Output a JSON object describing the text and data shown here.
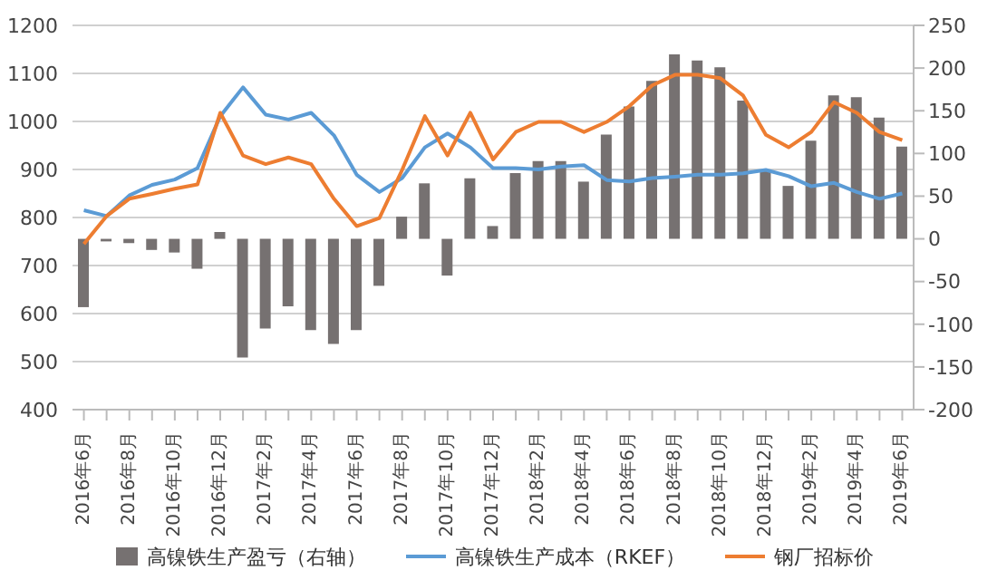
{
  "chart_data": {
    "type": "line",
    "categories": [
      "2016年6月",
      null,
      "2016年8月",
      null,
      "2016年10月",
      null,
      "2016年12月",
      null,
      "2017年2月",
      null,
      "2017年4月",
      null,
      "2017年6月",
      null,
      "2017年8月",
      null,
      "2017年10月",
      null,
      "2017年12月",
      null,
      "2018年2月",
      null,
      "2018年4月",
      null,
      "2018年6月",
      null,
      "2018年8月",
      null,
      "2018年10月",
      null,
      "2018年12月",
      null,
      "2019年2月",
      null,
      "2019年4月",
      null,
      "2019年6月"
    ],
    "series": [
      {
        "name": "高镍铁生产盈亏（右轴）",
        "type": "bar",
        "axis": "y2",
        "color": "#767171",
        "values": [
          -80,
          -3,
          -5,
          -13,
          -16,
          -35,
          8,
          -139,
          -105,
          -79,
          -107,
          -123,
          -107,
          -55,
          26,
          65,
          -43,
          71,
          15,
          77,
          91,
          91,
          67,
          122,
          155,
          185,
          216,
          209,
          201,
          162,
          81,
          62,
          115,
          168,
          166,
          142,
          108
        ]
      },
      {
        "name": "高镍铁生产成本（RKEF）",
        "color": "#5b9bd5",
        "values": [
          815,
          803,
          846,
          868,
          879,
          903,
          1011,
          1071,
          1014,
          1004,
          1018,
          971,
          889,
          853,
          882,
          946,
          975,
          946,
          903,
          903,
          900,
          906,
          909,
          878,
          875,
          882,
          885,
          889,
          889,
          892,
          899,
          886,
          865,
          872,
          853,
          839,
          850
        ]
      },
      {
        "name": "钢厂招标价",
        "color": "#ed7d31",
        "values": [
          745,
          803,
          839,
          849,
          860,
          869,
          1018,
          929,
          911,
          925,
          911,
          839,
          782,
          799,
          899,
          1011,
          929,
          1018,
          921,
          978,
          999,
          999,
          978,
          999,
          1032,
          1075,
          1097,
          1097,
          1090,
          1054,
          972,
          946,
          978,
          1040,
          1018,
          978,
          961
        ]
      }
    ],
    "ylim": [
      400,
      1200
    ],
    "yticks": [
      400,
      500,
      600,
      700,
      800,
      900,
      1000,
      1100,
      1200
    ],
    "y2lim": [
      -200,
      250
    ],
    "y2ticks": [
      -200,
      -150,
      -100,
      -50,
      0,
      50,
      100,
      150,
      200,
      250
    ],
    "grid": "y",
    "legend": "bottom",
    "marker": "none",
    "line_style": "solid"
  }
}
